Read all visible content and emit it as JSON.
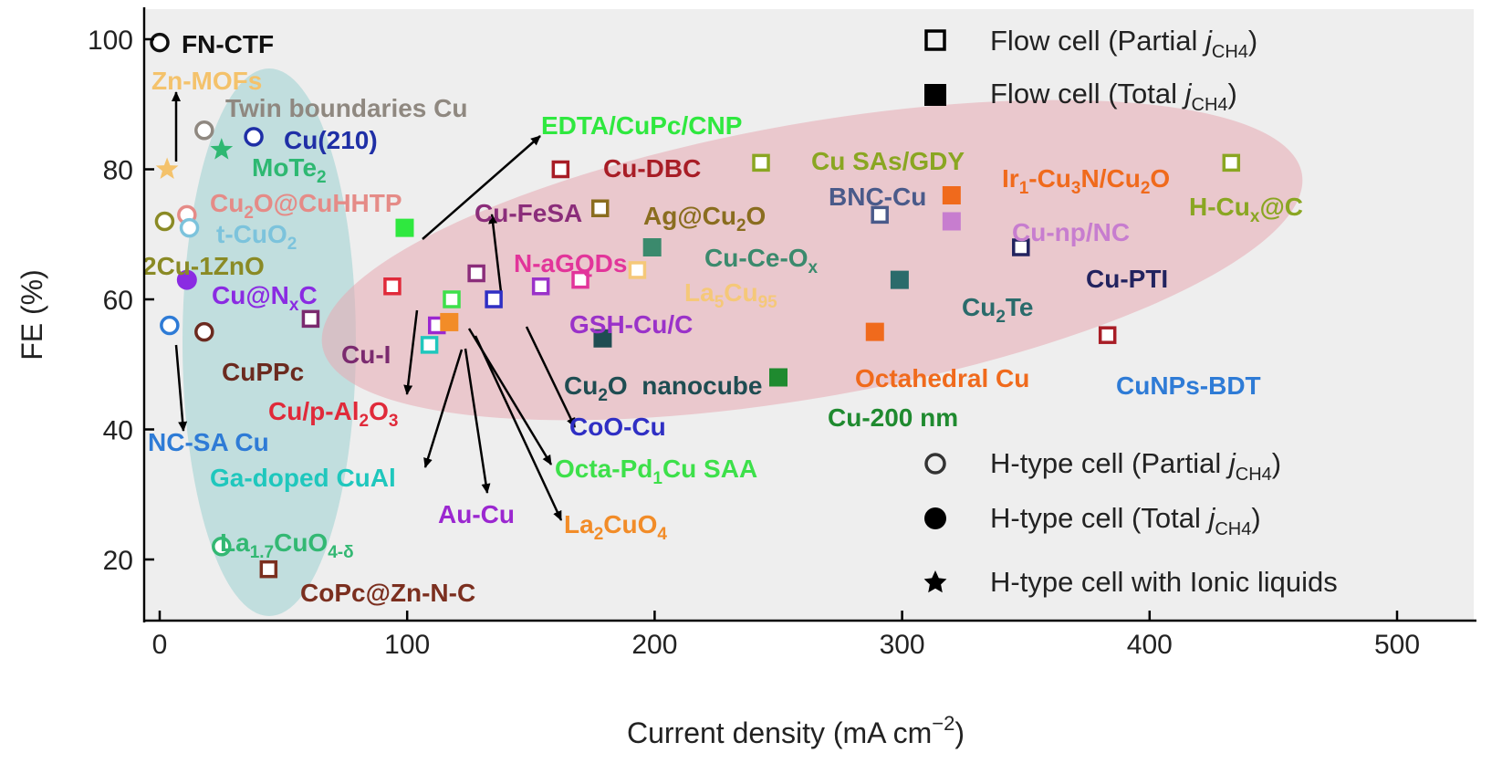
{
  "chart_data": {
    "type": "scatter",
    "xlabel": "Current density (mA cm−2)",
    "ylabel": "FE (%)",
    "xlim": [
      -12,
      500
    ],
    "ylim": [
      15,
      105
    ],
    "xticks": [
      "0",
      "100",
      "200",
      "300",
      "400",
      "500"
    ],
    "xtick_values": [
      0,
      100,
      200,
      300,
      400,
      500
    ],
    "yticks": [
      "20",
      "40",
      "60",
      "80",
      "100"
    ],
    "ytick_values": [
      20,
      40,
      60,
      80,
      100
    ],
    "grid": false,
    "legend_position": "top-right / bottom-right",
    "legend": [
      {
        "marker": "square-open",
        "text": "Flow cell (Partial jCH4)"
      },
      {
        "marker": "square-filled",
        "text": "Flow cell (Total jCH4)"
      },
      {
        "marker": "circle-open",
        "text": "H-type cell (Partial jCH4)"
      },
      {
        "marker": "circle-filled",
        "text": "H-type cell (Total jCH4)"
      },
      {
        "marker": "star",
        "text": "H-type cell with Ionic liquids"
      }
    ],
    "points": [
      {
        "name": "FN-CTF",
        "x": 0,
        "y": 99.5,
        "marker": "circle-open",
        "color": "#111111"
      },
      {
        "name": "Zn-MOFs",
        "x": 3,
        "y": 80,
        "marker": "star",
        "color": "#f4c26b"
      },
      {
        "name": "Twin boundaries Cu",
        "x": 18,
        "y": 86,
        "marker": "circle-open",
        "color": "#8f8880"
      },
      {
        "name": "Cu(210)",
        "x": 38,
        "y": 85,
        "marker": "circle-open",
        "color": "#1f2fa6"
      },
      {
        "name": "MoTe2",
        "x": 25,
        "y": 83,
        "marker": "star",
        "color": "#2eb872"
      },
      {
        "name": "Cu2O@CuHHTP",
        "x": 11,
        "y": 73,
        "marker": "circle-open",
        "color": "#e58b87"
      },
      {
        "name": "2Cu-1ZnO",
        "x": 2,
        "y": 72,
        "marker": "circle-open",
        "color": "#8a8a25"
      },
      {
        "name": "t-CuO2",
        "x": 12,
        "y": 71,
        "marker": "circle-open",
        "color": "#7cc3dc"
      },
      {
        "name": "Cu@NxC",
        "x": 11,
        "y": 63,
        "marker": "circle-filled",
        "color": "#8a2be2"
      },
      {
        "name": "NC-SA Cu",
        "x": 4,
        "y": 56,
        "marker": "circle-open",
        "color": "#2e7bd6"
      },
      {
        "name": "CuPPc",
        "x": 18,
        "y": 55,
        "marker": "circle-open",
        "color": "#6b2a1f"
      },
      {
        "name": "La1.7CuO4-δ",
        "x": 25,
        "y": 22,
        "marker": "circle-open",
        "color": "#33b873"
      },
      {
        "name": "CoPc@Zn-N-C",
        "x": 44,
        "y": 18.5,
        "marker": "square-open",
        "color": "#7b2f1f"
      },
      {
        "name": "Cu-I",
        "x": 61,
        "y": 57,
        "marker": "square-open",
        "color": "#7b2a6f"
      },
      {
        "name": "Cu/p-Al2O3",
        "x": 94,
        "y": 62,
        "marker": "square-open",
        "color": "#e02a3a"
      },
      {
        "name": "EDTA/CuPc/CNP",
        "x": 99,
        "y": 71,
        "marker": "square-filled",
        "color": "#2fe83f"
      },
      {
        "name": "Ga-doped CuAl",
        "x": 109,
        "y": 53,
        "marker": "square-open",
        "color": "#1fc7bd"
      },
      {
        "name": "Au-Cu",
        "x": 112,
        "y": 56,
        "marker": "square-open",
        "color": "#9b27d0"
      },
      {
        "name": "La2CuO4",
        "x": 117,
        "y": 56.5,
        "marker": "square-filled",
        "color": "#f28c28"
      },
      {
        "name": "Octa-Pd1Cu SAA",
        "x": 118,
        "y": 60,
        "marker": "square-open",
        "color": "#3de04a"
      },
      {
        "name": "Cu-FeSA",
        "x": 128,
        "y": 64,
        "marker": "square-open",
        "color": "#8b2d7a"
      },
      {
        "name": "CoO-Cu",
        "x": 135,
        "y": 60,
        "marker": "square-open",
        "color": "#2f2fc4"
      },
      {
        "name": "GSH-Cu/C",
        "x": 154,
        "y": 62,
        "marker": "square-open",
        "color": "#9a32c9"
      },
      {
        "name": "Cu-DBC",
        "x": 162,
        "y": 80,
        "marker": "square-open",
        "color": "#a81d26"
      },
      {
        "name": "N-aGQDs",
        "x": 170,
        "y": 63,
        "marker": "square-open",
        "color": "#e2359a"
      },
      {
        "name": "Ag@Cu2O",
        "x": 178,
        "y": 74,
        "marker": "square-open",
        "color": "#8a6d1f"
      },
      {
        "name": "Cu2O nanocube",
        "x": 179,
        "y": 54,
        "marker": "square-filled",
        "color": "#1f4d52"
      },
      {
        "name": "La5Cu95",
        "x": 193,
        "y": 64.5,
        "marker": "square-open",
        "color": "#f5c879"
      },
      {
        "name": "Cu-Ce-Ox",
        "x": 199,
        "y": 68,
        "marker": "square-filled",
        "color": "#3b8a6d"
      },
      {
        "name": "Cu SAs/GDY",
        "x": 243,
        "y": 81,
        "marker": "square-open",
        "color": "#8aa622"
      },
      {
        "name": "Cu-200 nm",
        "x": 250,
        "y": 48,
        "marker": "square-filled",
        "color": "#1f8a2f"
      },
      {
        "name": "Octahedral Cu",
        "x": 289,
        "y": 55,
        "marker": "square-filled",
        "color": "#f06a1c"
      },
      {
        "name": "BNC-Cu",
        "x": 291,
        "y": 73,
        "marker": "square-open",
        "color": "#4a5a8a"
      },
      {
        "name": "Cu2Te",
        "x": 299,
        "y": 63,
        "marker": "square-filled",
        "color": "#2a6b6b"
      },
      {
        "name": "Ir1-Cu3N/Cu2O",
        "x": 320,
        "y": 76,
        "marker": "square-filled",
        "color": "#f06a1c"
      },
      {
        "name": "Cu-np/NC",
        "x": 320,
        "y": 72,
        "marker": "square-filled",
        "color": "#c77dcf"
      },
      {
        "name": "Cu-PTI",
        "x": 348,
        "y": 68,
        "marker": "square-open",
        "color": "#22235f"
      },
      {
        "name": "CuNPs-BDT",
        "x": 383,
        "y": 54.5,
        "marker": "square-open",
        "color": "#a81d26"
      },
      {
        "name": "H-Cux@C",
        "x": 433,
        "y": 81,
        "marker": "square-open",
        "color": "#8aa622"
      }
    ]
  },
  "label_texts": {
    "FN-CTF": {
      "text": "FN-CTF",
      "color": "#111111"
    },
    "Zn-MOFs": {
      "text": "Zn-MOFs",
      "color": "#f4c26b"
    },
    "Twin": {
      "text": "Twin boundaries Cu",
      "color": "#8f8880"
    },
    "Cu210": {
      "text": "Cu(210)",
      "color": "#1f2fa6"
    },
    "MoTe2": {
      "base": "MoTe",
      "sub": "2",
      "color": "#2eb872"
    },
    "Cu2OCuHHTP": {
      "p1": "Cu",
      "s1": "2",
      "p2": "O@CuHHTP",
      "color": "#e58b87"
    },
    "tCuO2": {
      "base": "t-CuO",
      "sub": "2",
      "color": "#7cc3dc"
    },
    "2Cu1ZnO": {
      "text": "2Cu-1ZnO",
      "color": "#8a8a25"
    },
    "CuNxC": {
      "p1": "Cu@N",
      "s1": "x",
      "p2": "C",
      "color": "#8a2be2"
    },
    "CuPPc": {
      "text": "CuPPc",
      "color": "#6b2a1f"
    },
    "NCSACu": {
      "text": "NC-SA Cu",
      "color": "#2e7bd6"
    },
    "GaCuAl": {
      "text": "Ga-doped CuAl",
      "color": "#1fc7bd"
    },
    "La17": {
      "p1": "La",
      "s1": "1.7",
      "p2": "CuO",
      "s2": "4-δ",
      "color": "#33b873"
    },
    "CoPcZnNC": {
      "text": "CoPc@Zn-N-C",
      "color": "#7b2f1f"
    },
    "CuI": {
      "text": "Cu-I",
      "color": "#7b2a6f"
    },
    "CupAl2O3": {
      "p1": "Cu/p-Al",
      "s1": "2",
      "p2": "O",
      "s2": "3",
      "color": "#e02a3a"
    },
    "EDTA": {
      "text": "EDTA/CuPc/CNP",
      "color": "#2fe83f"
    },
    "CuFeSA": {
      "text": "Cu-FeSA",
      "color": "#8b2d7a"
    },
    "CuDBC": {
      "text": "Cu-DBC",
      "color": "#a81d26"
    },
    "AgCu2O": {
      "p1": "Ag@Cu",
      "s1": "2",
      "p2": "O",
      "color": "#8a6d1f"
    },
    "NaGQDs": {
      "text": "N-aGQDs",
      "color": "#e2359a"
    },
    "GSHCuC": {
      "text": "GSH-Cu/C",
      "color": "#9a32c9"
    },
    "La5Cu95": {
      "p1": "La",
      "s1": "5",
      "p2": "Cu",
      "s2": "95",
      "color": "#f5c879"
    },
    "CuCeOx": {
      "base": "Cu-Ce-O",
      "sub": "x",
      "color": "#3b8a6d"
    },
    "Cu2Onanocube": {
      "p1": "Cu",
      "s1": "2",
      "p2": "O  nanocube",
      "color": "#1f4d52"
    },
    "CoOCu": {
      "text": "CoO-Cu",
      "color": "#2f2fc4"
    },
    "OctaPd1Cu": {
      "p1": "Octa-Pd",
      "s1": "1",
      "p2": "Cu SAA",
      "color": "#3de04a"
    },
    "AuCu": {
      "text": "Au-Cu",
      "color": "#9b27d0"
    },
    "La2CuO4": {
      "p1": "La",
      "s1": "2",
      "p2": "CuO",
      "s2": "4",
      "color": "#f28c28"
    },
    "CuSAsGDY": {
      "text": "Cu SAs/GDY",
      "color": "#8aa622"
    },
    "BNCCu": {
      "text": "BNC-Cu",
      "color": "#4a5a8a"
    },
    "Ir1Cu3N": {
      "p1": "Ir",
      "s1": "1",
      "p2": "-Cu",
      "s2": "3",
      "p3": "N/Cu",
      "s3": "2",
      "p4": "O",
      "color": "#f06a1c"
    },
    "HCuxC": {
      "p1": "H-Cu",
      "s1": "x",
      "p2": "@C",
      "color": "#8aa622"
    },
    "CunpNC": {
      "text": "Cu-np/NC",
      "color": "#c77dcf"
    },
    "CuPTI": {
      "text": "Cu-PTI",
      "color": "#22235f"
    },
    "Cu2Te": {
      "p1": "Cu",
      "s1": "2",
      "p2": "Te",
      "color": "#2a6b6b"
    },
    "OctaCu": {
      "text": "Octahedral Cu",
      "color": "#f06a1c"
    },
    "CuNPsBDT": {
      "text": "CuNPs-BDT",
      "color": "#2e7bd6"
    },
    "Cu200": {
      "text": "Cu-200 nm",
      "color": "#1f8a2f"
    }
  },
  "legend_text": {
    "flow_partial_pre": "Flow cell (Partial ",
    "flow_total_pre": "Flow cell (Total ",
    "h_partial_pre": "H-type cell (Partial ",
    "h_total_pre": "H-type cell (Total ",
    "j": "j",
    "sub": "CH4",
    "close": ")",
    "ionic": "H-type cell with Ionic liquids"
  },
  "axis_text": {
    "xlabel_pre": "Current density (mA cm",
    "xlabel_sup": "−2",
    "xlabel_post": ")",
    "ylabel": "FE (%)"
  },
  "colors": {
    "plot_bg": "#eeeeee",
    "blue_ellipse": "#a9d6d6",
    "red_ellipse": "#e7a9b3"
  }
}
